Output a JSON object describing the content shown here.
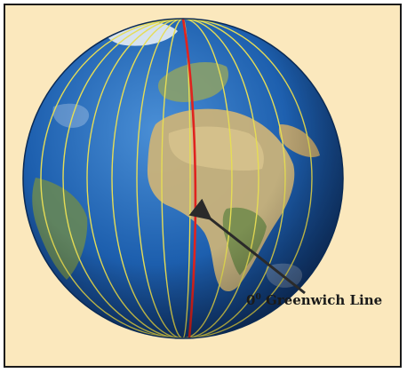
{
  "figure": {
    "annotation": {
      "degree_value": "0",
      "degree_mark": "0",
      "text": "Greenwich Line"
    },
    "colors": {
      "background": "#fbe8bd",
      "ocean": "#1d5fae",
      "land": "#c9b27a",
      "meridian": "#e6dd55",
      "greenwich": "#e0231e",
      "arrow": "#2a2a2a"
    },
    "elements": [
      "globe",
      "meridian-lines",
      "greenwich-meridian",
      "arrow",
      "label"
    ]
  }
}
